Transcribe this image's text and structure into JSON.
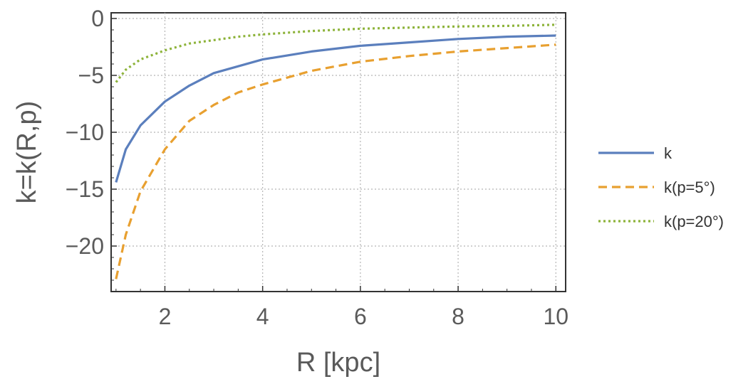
{
  "chart_data": {
    "type": "line",
    "xlabel": "R [kpc]",
    "ylabel": "k=k(R,p)",
    "xlim": [
      0.9,
      10.2
    ],
    "ylim": [
      -24,
      0.5
    ],
    "xticks": [
      2,
      4,
      6,
      8,
      10
    ],
    "yticks": [
      0,
      -5,
      -10,
      -15,
      -20
    ],
    "xtick_labels": [
      "2",
      "4",
      "6",
      "8",
      "10"
    ],
    "ytick_labels": [
      "0",
      "−5",
      "−10",
      "−15",
      "−20"
    ],
    "grid": true,
    "legend_position": "right",
    "series": [
      {
        "name": "k",
        "color": "#5b7fbd",
        "style": "solid",
        "x": [
          1.0,
          1.2,
          1.5,
          2.0,
          2.5,
          3.0,
          3.5,
          4.0,
          5.0,
          6.0,
          7.0,
          8.0,
          9.0,
          10.0
        ],
        "y": [
          -14.4,
          -11.5,
          -9.4,
          -7.3,
          -5.9,
          -4.8,
          -4.2,
          -3.6,
          -2.9,
          -2.4,
          -2.1,
          -1.8,
          -1.6,
          -1.5
        ]
      },
      {
        "name": "k(p=5°)",
        "color": "#e8a030",
        "style": "dashed",
        "x": [
          1.0,
          1.2,
          1.5,
          2.0,
          2.5,
          3.0,
          3.5,
          4.0,
          5.0,
          6.0,
          7.0,
          8.0,
          9.0,
          10.0
        ],
        "y": [
          -22.9,
          -19.0,
          -15.2,
          -11.5,
          -9.0,
          -7.6,
          -6.5,
          -5.8,
          -4.6,
          -3.8,
          -3.3,
          -2.9,
          -2.6,
          -2.3
        ]
      },
      {
        "name": "k(p=20°)",
        "color": "#8db33a",
        "style": "dotted",
        "x": [
          1.0,
          1.2,
          1.5,
          2.0,
          2.5,
          3.0,
          3.5,
          4.0,
          5.0,
          6.0,
          7.0,
          8.0,
          9.0,
          10.0
        ],
        "y": [
          -5.6,
          -4.5,
          -3.6,
          -2.8,
          -2.2,
          -1.9,
          -1.6,
          -1.4,
          -1.1,
          -0.9,
          -0.8,
          -0.7,
          -0.65,
          -0.55
        ]
      }
    ]
  }
}
